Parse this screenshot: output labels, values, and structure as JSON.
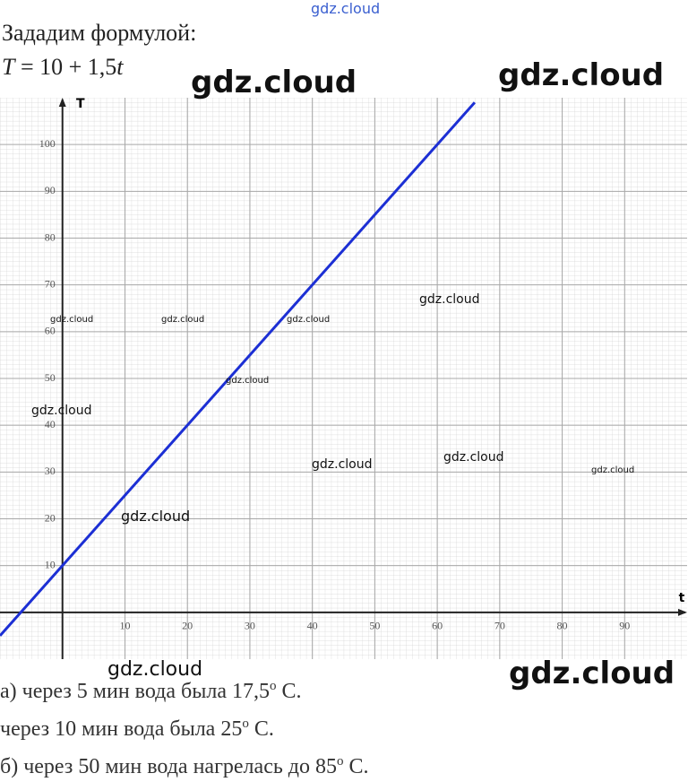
{
  "header": {
    "title": "Зададим формулой:",
    "formula": [
      "T",
      " = 10 + 1,5",
      "t"
    ]
  },
  "chart_data": {
    "type": "line",
    "x": [
      -10,
      66
    ],
    "values": [
      -5,
      109
    ],
    "color": "#1c2fd4",
    "xlabel": "t",
    "ylabel": "T",
    "xlim": [
      -10,
      100
    ],
    "ylim": [
      -10,
      110
    ],
    "xticks": [
      10,
      20,
      30,
      40,
      50,
      60,
      70,
      80,
      90
    ],
    "yticks": [
      10,
      20,
      30,
      40,
      50,
      60,
      70,
      80,
      90,
      100
    ],
    "grid": true
  },
  "answers": [
    {
      "before": "а) через 5 мин вода была 17,5",
      "sup": "o",
      "after": " С."
    },
    {
      "before": "через 10 мин вода была 25",
      "sup": "o",
      "after": " С."
    },
    {
      "before": "б) через 50 мин вода нагрелась до 85",
      "sup": "o",
      "after": " С."
    }
  ],
  "watermarks": [
    "gdz.cloud",
    "gdz.cloud",
    "gdz.cloud",
    "gdz.cloud",
    "gdz.cloud",
    "gdz.cloud",
    "gdz.cloud",
    "gdz.cloud",
    "gdz.cloud",
    "gdz.cloud",
    "gdz.cloud",
    "gdz.cloud",
    "gdz.cloud",
    "gdz.cloud",
    "gdz.cloud"
  ]
}
